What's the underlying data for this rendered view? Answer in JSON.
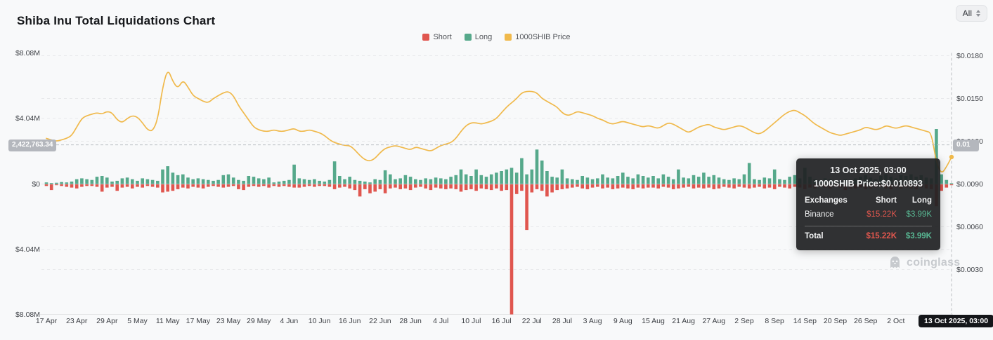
{
  "header": {
    "title": "Shiba Inu Total Liquidations Chart",
    "range_selector": "All"
  },
  "legend": [
    {
      "label": "Short",
      "color": "#e0564f"
    },
    {
      "label": "Long",
      "color": "#56a98b"
    },
    {
      "label": "1000SHIB Price",
      "color": "#f0b94b"
    }
  ],
  "crosshair": {
    "left_badge": "2,422,763.34",
    "right_badge": "0.01",
    "x_badge": "13 Oct 2025, 03:00"
  },
  "tooltip": {
    "title": "13 Oct 2025, 03:00",
    "subtitle": "1000SHIB Price:$0.010893",
    "columns": [
      "Exchanges",
      "Short",
      "Long"
    ],
    "rows": [
      {
        "name": "Binance",
        "short": "$15.22K",
        "long": "$3.99K"
      }
    ],
    "total": {
      "name": "Total",
      "short": "$15.22K",
      "long": "$3.99K"
    }
  },
  "watermark": "coinglass",
  "chart_data": {
    "type": "bar",
    "title": "Shiba Inu Total Liquidations Chart",
    "start_date": "17 Apr 2025",
    "end_date": "13 Oct 2025",
    "interval": "daily",
    "left_axis": {
      "ticks": [
        "$8.08M",
        "$4.04M",
        "$0",
        "$4.04M",
        "$8.08M"
      ],
      "max_abs_musd": 8.08
    },
    "right_axis": {
      "ticks": [
        0.018,
        0.015,
        0.012,
        0.009,
        0.006,
        0.003
      ],
      "unit": "USD"
    },
    "x_ticks": [
      {
        "d": 0,
        "label": "17 Apr"
      },
      {
        "d": 6,
        "label": "23 Apr"
      },
      {
        "d": 12,
        "label": "29 Apr"
      },
      {
        "d": 18,
        "label": "5 May"
      },
      {
        "d": 24,
        "label": "11 May"
      },
      {
        "d": 30,
        "label": "17 May"
      },
      {
        "d": 36,
        "label": "23 May"
      },
      {
        "d": 42,
        "label": "29 May"
      },
      {
        "d": 48,
        "label": "4 Jun"
      },
      {
        "d": 54,
        "label": "10 Jun"
      },
      {
        "d": 60,
        "label": "16 Jun"
      },
      {
        "d": 66,
        "label": "22 Jun"
      },
      {
        "d": 72,
        "label": "28 Jun"
      },
      {
        "d": 78,
        "label": "4 Jul"
      },
      {
        "d": 84,
        "label": "10 Jul"
      },
      {
        "d": 90,
        "label": "16 Jul"
      },
      {
        "d": 96,
        "label": "22 Jul"
      },
      {
        "d": 102,
        "label": "28 Jul"
      },
      {
        "d": 108,
        "label": "3 Aug"
      },
      {
        "d": 114,
        "label": "9 Aug"
      },
      {
        "d": 120,
        "label": "15 Aug"
      },
      {
        "d": 126,
        "label": "21 Aug"
      },
      {
        "d": 132,
        "label": "27 Aug"
      },
      {
        "d": 138,
        "label": "2 Sep"
      },
      {
        "d": 144,
        "label": "8 Sep"
      },
      {
        "d": 150,
        "label": "14 Sep"
      },
      {
        "d": 156,
        "label": "20 Sep"
      },
      {
        "d": 162,
        "label": "26 Sep"
      },
      {
        "d": 168,
        "label": "2 Oct"
      }
    ],
    "series": [
      {
        "name": "Short",
        "type": "bar",
        "direction": "down",
        "color": "#e0564f",
        "unit": "USD millions",
        "values": [
          0.1,
          0.35,
          0.05,
          0.1,
          0.15,
          0.2,
          0.25,
          0.15,
          0.1,
          0.1,
          0.15,
          0.45,
          0.2,
          0.15,
          0.4,
          0.2,
          0.15,
          0.25,
          0.15,
          0.2,
          0.1,
          0.15,
          0.2,
          0.5,
          0.45,
          0.4,
          0.3,
          0.2,
          0.25,
          0.15,
          0.2,
          0.25,
          0.15,
          0.1,
          0.15,
          0.2,
          0.15,
          0.1,
          0.3,
          0.35,
          0.15,
          0.1,
          0.15,
          0.1,
          0.2,
          0.1,
          0.15,
          0.1,
          0.15,
          0.2,
          0.2,
          0.15,
          0.1,
          0.15,
          0.1,
          0.1,
          0.15,
          0.3,
          0.2,
          0.15,
          0.25,
          0.35,
          0.75,
          0.3,
          0.55,
          0.45,
          0.3,
          0.55,
          0.25,
          0.2,
          0.3,
          0.25,
          0.35,
          0.2,
          0.15,
          0.25,
          0.35,
          0.2,
          0.25,
          0.3,
          0.25,
          0.3,
          0.45,
          0.35,
          0.3,
          0.4,
          0.25,
          0.3,
          0.35,
          0.25,
          0.4,
          0.35,
          8.5,
          0.6,
          0.4,
          2.82,
          0.5,
          0.3,
          0.4,
          0.75,
          0.5,
          0.35,
          0.3,
          0.25,
          0.2,
          0.15,
          0.25,
          0.3,
          0.2,
          0.15,
          0.25,
          0.2,
          0.3,
          0.25,
          0.2,
          0.25,
          0.3,
          0.2,
          0.25,
          0.2,
          0.2,
          0.25,
          0.15,
          0.2,
          0.3,
          0.25,
          0.2,
          0.15,
          0.25,
          0.2,
          0.25,
          0.2,
          0.3,
          0.25,
          0.15,
          0.2,
          0.25,
          0.15,
          0.2,
          0.25,
          0.2,
          0.15,
          0.25,
          0.2,
          0.3,
          0.15,
          0.2,
          0.25,
          0.15,
          0.2,
          0.3,
          0.2,
          0.25,
          0.15,
          0.2,
          0.25,
          0.15,
          0.2,
          0.35,
          0.25,
          0.25,
          0.2,
          0.3,
          0.25,
          0.2,
          0.15,
          0.25,
          0.3,
          0.2,
          0.25,
          0.2,
          0.25,
          0.3,
          0.2,
          0.25,
          0.3,
          1.35,
          0.4,
          0.2,
          0.015
        ]
      },
      {
        "name": "Long",
        "type": "bar",
        "direction": "up",
        "color": "#56a98b",
        "unit": "USD millions",
        "values": [
          0.1,
          0.06,
          0.08,
          0.12,
          0.1,
          0.15,
          0.3,
          0.35,
          0.3,
          0.25,
          0.45,
          0.5,
          0.4,
          0.15,
          0.2,
          0.35,
          0.4,
          0.3,
          0.2,
          0.35,
          0.3,
          0.25,
          0.2,
          0.9,
          1.1,
          0.7,
          0.55,
          0.6,
          0.4,
          0.3,
          0.35,
          0.3,
          0.25,
          0.2,
          0.25,
          0.55,
          0.6,
          0.4,
          0.25,
          0.2,
          0.5,
          0.45,
          0.35,
          0.3,
          0.4,
          0.1,
          0.15,
          0.2,
          0.25,
          1.2,
          0.35,
          0.3,
          0.25,
          0.3,
          0.2,
          0.15,
          0.25,
          1.4,
          0.5,
          0.3,
          0.45,
          0.25,
          0.2,
          0.15,
          0.1,
          0.3,
          0.25,
          0.85,
          0.6,
          0.3,
          0.35,
          0.55,
          0.45,
          0.3,
          0.25,
          0.35,
          0.3,
          0.4,
          0.35,
          0.3,
          0.45,
          0.55,
          0.9,
          0.6,
          0.5,
          0.9,
          0.55,
          0.45,
          0.6,
          0.7,
          0.8,
          0.9,
          1.0,
          0.7,
          1.6,
          0.6,
          0.9,
          2.13,
          1.45,
          0.8,
          0.45,
          0.4,
          0.9,
          0.35,
          0.3,
          0.25,
          0.5,
          0.4,
          0.3,
          0.35,
          0.6,
          0.4,
          0.35,
          0.5,
          0.7,
          0.45,
          0.35,
          0.6,
          0.5,
          0.4,
          0.5,
          0.35,
          0.6,
          0.45,
          0.3,
          0.9,
          0.4,
          0.35,
          0.55,
          0.45,
          0.7,
          0.45,
          0.55,
          0.4,
          0.3,
          0.25,
          0.35,
          0.3,
          0.6,
          1.3,
          0.3,
          0.25,
          0.4,
          0.35,
          0.9,
          0.3,
          0.25,
          0.45,
          0.55,
          0.35,
          1.0,
          0.45,
          0.3,
          0.25,
          0.35,
          0.3,
          0.25,
          0.2,
          0.3,
          0.25,
          0.35,
          0.45,
          0.55,
          0.4,
          0.3,
          0.5,
          0.6,
          0.45,
          0.35,
          0.55,
          0.5,
          0.6,
          0.45,
          0.55,
          0.4,
          0.35,
          3.4,
          0.6,
          0.25,
          0.004
        ]
      },
      {
        "name": "1000SHIB Price",
        "type": "line",
        "axis": "right",
        "color": "#f0b94b",
        "unit": "USD",
        "values": [
          0.0122,
          0.0121,
          0.012,
          0.0121,
          0.0122,
          0.0124,
          0.013,
          0.0136,
          0.0138,
          0.0139,
          0.014,
          0.0139,
          0.0141,
          0.014,
          0.0135,
          0.0133,
          0.0136,
          0.0138,
          0.0137,
          0.0133,
          0.0128,
          0.0127,
          0.0135,
          0.0158,
          0.0171,
          0.0162,
          0.0157,
          0.0163,
          0.0158,
          0.0152,
          0.015,
          0.0148,
          0.0147,
          0.015,
          0.0152,
          0.0154,
          0.0155,
          0.0152,
          0.0145,
          0.014,
          0.0135,
          0.013,
          0.0128,
          0.0127,
          0.0127,
          0.0128,
          0.0127,
          0.0127,
          0.0128,
          0.0129,
          0.0127,
          0.0127,
          0.0128,
          0.0127,
          0.0126,
          0.0124,
          0.0121,
          0.0119,
          0.0118,
          0.0117,
          0.0117,
          0.0114,
          0.011,
          0.0107,
          0.0106,
          0.0108,
          0.0112,
          0.0115,
          0.0116,
          0.0117,
          0.0116,
          0.0115,
          0.0114,
          0.0116,
          0.0115,
          0.0114,
          0.0113,
          0.0115,
          0.0117,
          0.0118,
          0.0119,
          0.0122,
          0.0127,
          0.0131,
          0.0133,
          0.0133,
          0.0132,
          0.0133,
          0.0134,
          0.0136,
          0.014,
          0.0144,
          0.0147,
          0.015,
          0.0154,
          0.0155,
          0.0155,
          0.0154,
          0.015,
          0.0148,
          0.0146,
          0.0144,
          0.014,
          0.0138,
          0.0139,
          0.0141,
          0.014,
          0.0139,
          0.0138,
          0.0136,
          0.0135,
          0.0133,
          0.0132,
          0.0133,
          0.0134,
          0.0133,
          0.0132,
          0.0131,
          0.013,
          0.0131,
          0.013,
          0.0129,
          0.0131,
          0.0133,
          0.0132,
          0.013,
          0.0128,
          0.0126,
          0.0128,
          0.013,
          0.0131,
          0.0132,
          0.013,
          0.0129,
          0.0128,
          0.0129,
          0.013,
          0.0131,
          0.013,
          0.0128,
          0.0126,
          0.0125,
          0.0127,
          0.013,
          0.0133,
          0.0136,
          0.0139,
          0.0141,
          0.0142,
          0.014,
          0.0138,
          0.0135,
          0.0132,
          0.013,
          0.0128,
          0.0126,
          0.0125,
          0.0124,
          0.0125,
          0.0126,
          0.0127,
          0.0128,
          0.013,
          0.0129,
          0.0128,
          0.0129,
          0.0131,
          0.013,
          0.0129,
          0.013,
          0.0131,
          0.013,
          0.0129,
          0.0128,
          0.0127,
          0.0126,
          0.0105,
          0.0097,
          0.0102,
          0.010893
        ]
      }
    ],
    "crosshair_point": {
      "date": "13 Oct 2025, 03:00",
      "price": 0.010893,
      "left_axis_value": 2422763.34
    }
  }
}
